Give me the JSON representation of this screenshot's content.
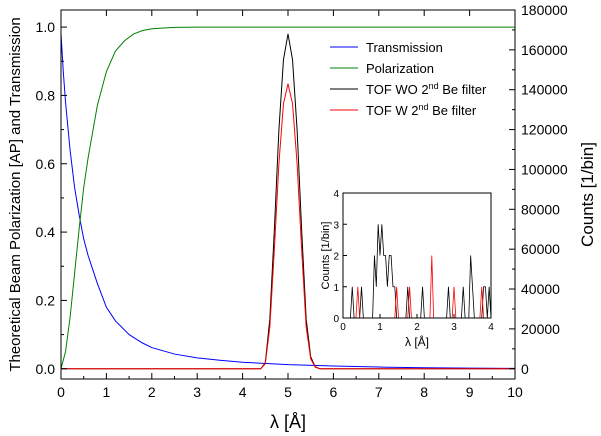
{
  "chart_data": [
    {
      "type": "line",
      "xlabel": "λ [Å]",
      "ylabel_left": "Theoretical Beam Polarization [AP] and Transmission",
      "ylabel_right": "Counts [1/bin]",
      "xlim": [
        0,
        10
      ],
      "ylim_left": [
        -0.03,
        1.05
      ],
      "ylim_right": [
        -5142,
        180000
      ],
      "x_ticks": [
        "0",
        "1",
        "2",
        "3",
        "4",
        "5",
        "6",
        "7",
        "8",
        "9",
        "10"
      ],
      "y_left_ticks": [
        "0.0",
        "0.2",
        "0.4",
        "0.6",
        "0.8",
        "1.0"
      ],
      "y_right_ticks": [
        "0",
        "20000",
        "40000",
        "60000",
        "80000",
        "100000",
        "120000",
        "140000",
        "160000",
        "180000"
      ],
      "grid": false,
      "legend_position": "top-right",
      "series": [
        {
          "name": "Transmission",
          "axis": "left",
          "color": "#0000ff",
          "x": [
            0,
            0.05,
            0.1,
            0.15,
            0.2,
            0.3,
            0.4,
            0.5,
            0.6,
            0.7,
            0.8,
            1.0,
            1.2,
            1.5,
            1.8,
            2.0,
            2.5,
            3.0,
            3.5,
            4.0,
            5.0,
            6.0,
            7.0,
            8.0,
            9.0,
            10.0
          ],
          "y": [
            0.98,
            0.87,
            0.78,
            0.71,
            0.64,
            0.53,
            0.45,
            0.38,
            0.33,
            0.29,
            0.25,
            0.18,
            0.14,
            0.1,
            0.075,
            0.062,
            0.043,
            0.032,
            0.025,
            0.019,
            0.012,
            0.008,
            0.005,
            0.003,
            0.002,
            0.001
          ]
        },
        {
          "name": "Polarization",
          "axis": "left",
          "color": "#008000",
          "x": [
            0,
            0.1,
            0.2,
            0.3,
            0.4,
            0.5,
            0.6,
            0.8,
            1.0,
            1.2,
            1.4,
            1.6,
            1.8,
            2.0,
            2.5,
            3.0,
            4.0,
            6.0,
            8.0,
            10.0
          ],
          "y": [
            0.0,
            0.05,
            0.15,
            0.28,
            0.41,
            0.53,
            0.62,
            0.77,
            0.87,
            0.93,
            0.96,
            0.98,
            0.99,
            0.995,
            0.999,
            1.0,
            1.0,
            1.0,
            1.0,
            1.0
          ]
        },
        {
          "name": "TOF WO 2nd Be filter",
          "name_parts": [
            "TOF WO 2",
            "nd",
            " Be filter"
          ],
          "axis": "right",
          "color": "#000000",
          "x": [
            0,
            4.3,
            4.4,
            4.5,
            4.6,
            4.7,
            4.8,
            4.9,
            5.0,
            5.1,
            5.2,
            5.3,
            5.4,
            5.5,
            5.6,
            5.7,
            6.0,
            10.0
          ],
          "y": [
            0,
            0,
            0,
            3000,
            25000,
            70000,
            120000,
            155000,
            168000,
            155000,
            120000,
            70000,
            25000,
            6000,
            1000,
            0,
            0,
            0
          ]
        },
        {
          "name": "TOF W 2nd Be filter",
          "name_parts": [
            "TOF W 2",
            "nd",
            " Be filter"
          ],
          "axis": "right",
          "color": "#ff0000",
          "x": [
            0,
            4.3,
            4.4,
            4.5,
            4.6,
            4.7,
            4.8,
            4.9,
            5.0,
            5.1,
            5.2,
            5.3,
            5.4,
            5.5,
            5.6,
            5.7,
            6.0,
            10.0
          ],
          "y": [
            0,
            0,
            0,
            2500,
            21000,
            60000,
            103000,
            133000,
            143000,
            133000,
            103000,
            60000,
            21000,
            5000,
            800,
            0,
            0,
            0
          ]
        }
      ]
    },
    {
      "type": "line",
      "inset": true,
      "xlabel": "λ [Å]",
      "ylabel": "Counts [1/bin]",
      "xlim": [
        0,
        4
      ],
      "ylim": [
        0,
        4
      ],
      "x_ticks": [
        "0",
        "1",
        "2",
        "3",
        "4"
      ],
      "y_ticks": [
        "0",
        "1",
        "2",
        "3",
        "4"
      ],
      "series": [
        {
          "color": "#000000",
          "x": [
            0,
            0.2,
            0.25,
            0.3,
            0.45,
            0.5,
            0.55,
            0.8,
            0.85,
            0.9,
            0.95,
            1.0,
            1.05,
            1.1,
            1.15,
            1.2,
            1.25,
            1.3,
            1.35,
            1.4,
            1.45,
            1.7,
            1.75,
            1.8,
            2.1,
            2.15,
            2.2,
            2.8,
            2.85,
            2.9,
            3.2,
            3.25,
            3.3,
            3.4,
            3.45,
            3.5,
            3.55,
            3.6,
            3.75,
            3.8,
            3.85,
            3.9,
            3.95,
            4.0
          ],
          "y": [
            0,
            0,
            1,
            0,
            0,
            1,
            0,
            0,
            2,
            1,
            3,
            2,
            3,
            2,
            2,
            1,
            2,
            2,
            1,
            1,
            0,
            0,
            1,
            0,
            0,
            1,
            0,
            0,
            1,
            0,
            0,
            1,
            0,
            0,
            2,
            1,
            0,
            0,
            0,
            1,
            1,
            0,
            1,
            0
          ]
        },
        {
          "color": "#ff0000",
          "x": [
            0,
            0.35,
            0.4,
            0.45,
            1.4,
            1.45,
            1.5,
            1.75,
            1.8,
            1.85,
            2.35,
            2.4,
            2.45,
            2.5,
            2.95,
            3.0,
            3.05,
            3.7,
            3.75,
            3.8,
            4.0
          ],
          "y": [
            0,
            0,
            1,
            0,
            0,
            1,
            0,
            0,
            1,
            0,
            0,
            2,
            0,
            0,
            0,
            1,
            0,
            0,
            1,
            0,
            0
          ]
        }
      ]
    }
  ]
}
